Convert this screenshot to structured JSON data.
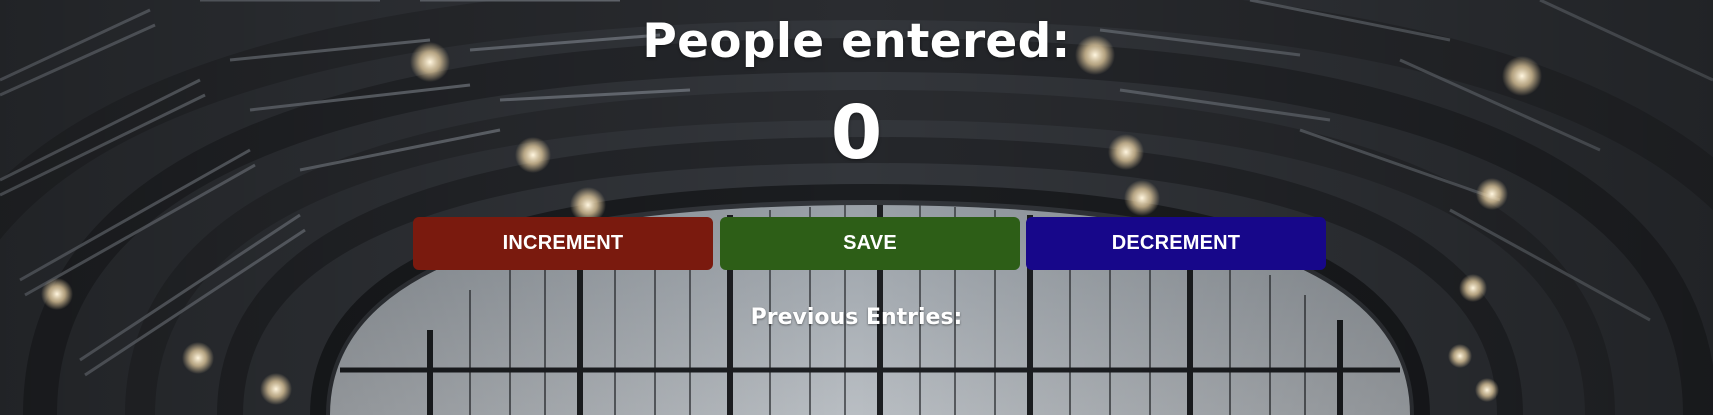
{
  "heading": "People entered:",
  "counter": {
    "value": "0"
  },
  "buttons": {
    "increment": {
      "label": "INCREMENT",
      "color": "#7a1a0e"
    },
    "save": {
      "label": "SAVE",
      "color": "#2d5e17"
    },
    "decrement": {
      "label": "DECREMENT",
      "color": "#17078a"
    }
  },
  "previous_entries": {
    "label": "Previous Entries:"
  },
  "background": {
    "description_icon": "station-roof-background"
  }
}
